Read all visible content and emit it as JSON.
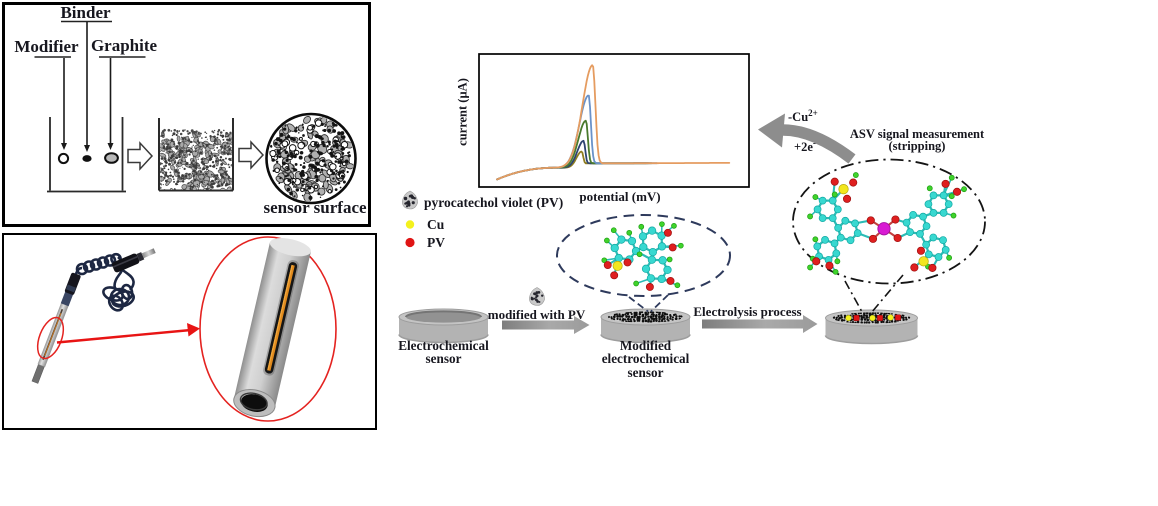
{
  "figure": {
    "kind": "electrochemical sensor fabrication and ASV measurement scheme"
  },
  "panel_fabrication": {
    "label_binder": "Binder",
    "label_modifier": "Modifier",
    "label_graphite": "Graphite",
    "caption": "sensor surface"
  },
  "panel_electrode": {
    "description": "photograph of sensor electrode with coiled cable, zoom ellipse showing carbon-paste rod with working channel"
  },
  "chart_data": {
    "type": "line",
    "title": "",
    "xlabel": "potential (mV)",
    "ylabel": "current (µA)",
    "x_ticks": [],
    "y_ticks": [],
    "grid": false,
    "legend_position": "none",
    "description": "anodic stripping voltammograms: peak current increases over successive scans",
    "plot_frac": {
      "x_start": 0.067,
      "x_end_common": 0.64,
      "start_y": 0.057,
      "baseline": 0.145,
      "tail": 0.178
    },
    "series": [
      {
        "name": "scan-1-lowest",
        "color": "#8f7d20",
        "peak_center": 0.38,
        "peak_height": 0.122,
        "sigma_left": 0.019,
        "sigma_right": 0.006,
        "x_end": 0.62
      },
      {
        "name": "scan-2",
        "color": "#2e4471",
        "peak_center": 0.387,
        "peak_height": 0.202,
        "sigma_left": 0.023,
        "sigma_right": 0.0065,
        "x_end": 0.63
      },
      {
        "name": "scan-3",
        "color": "#4a7a2d",
        "peak_center": 0.396,
        "peak_height": 0.354,
        "sigma_left": 0.028,
        "sigma_right": 0.0072,
        "x_end": 0.64
      },
      {
        "name": "scan-4",
        "color": "#6a92c9",
        "peak_center": 0.406,
        "peak_height": 0.544,
        "sigma_left": 0.034,
        "sigma_right": 0.0082,
        "x_end": 0.66
      },
      {
        "name": "scan-5-highest",
        "color": "#e59c60",
        "peak_center": 0.421,
        "peak_height": 0.772,
        "sigma_left": 0.038,
        "sigma_right": 0.01,
        "x_end": 0.93
      }
    ]
  },
  "legend": {
    "items": [
      {
        "label": "pyrocatechol violet (PV)",
        "icon": "pv-particle",
        "color": "#c3c3c3"
      },
      {
        "label": "Cu",
        "icon": "dot",
        "color": "#f4f11d"
      },
      {
        "label": "PV",
        "icon": "dot",
        "color": "#e01414"
      }
    ]
  },
  "workflow": {
    "step1_label": "Electrochemical\nsensor",
    "arrow1_label": "modified with PV",
    "step2_label": "Modified\nelectrochemical\nsensor",
    "arrow2_label": "Electrolysis process",
    "step3_title": "ASV signal measurement\n(stripping)",
    "recycle": {
      "cu_base": "-Cu",
      "cu_sup": "2+",
      "e_base": "+2e",
      "e_sup": "-"
    }
  },
  "palette": {
    "background": "#ffffff",
    "frame": "#000000",
    "text": "#17171f",
    "red_accent": "#e42320",
    "navy_dash": "#2e3a5c",
    "gray_arrow": "#8d8d8d",
    "disc_gray": "#b3b3b3",
    "atom_carbon": "#38d8d0",
    "atom_hydrogen": "#3fd32b",
    "atom_oxygen": "#df1f1f",
    "atom_sulfur": "#f2e61e",
    "atom_copper": "#d81bd3"
  }
}
